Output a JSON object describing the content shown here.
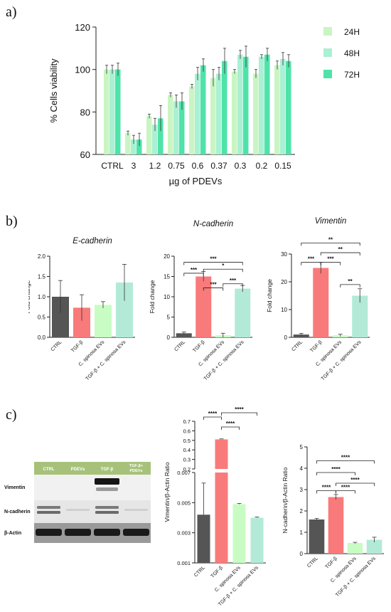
{
  "panels": {
    "a": "a)",
    "b": "b)",
    "c": "c)"
  },
  "colors": {
    "h24": "#c9f5c2",
    "h48": "#aaf0d4",
    "h72": "#4fe3a9",
    "ctrl": "#555555",
    "tgf": "#f97a7a",
    "cs": "#c8fcc4",
    "tgfcs": "#b2ead7",
    "axis": "#222222",
    "err": "#333333",
    "blot_header": "#a7c17a"
  },
  "blot": {
    "columns": [
      "CTRL",
      "PDEVs",
      "TGF-β",
      "TGF-β+ PDEVs"
    ],
    "rows": [
      "Vimentin",
      "N-cadherin",
      "β-Actin"
    ]
  },
  "chart_data": [
    {
      "id": "a",
      "type": "bar",
      "title": "",
      "xlabel": "µg of PDEVs",
      "ylabel": "% Cells viability",
      "categories": [
        "CTRL",
        "3",
        "1.2",
        "0.75",
        "0.6",
        "0.37",
        "0.3",
        "0.2",
        "0.15"
      ],
      "ylim": [
        60,
        120
      ],
      "yticks": [
        "60",
        "80",
        "100",
        "120"
      ],
      "legend": "right",
      "series": [
        {
          "name": "24H",
          "values": [
            100,
            70,
            78,
            88,
            92,
            96,
            99,
            98,
            102
          ],
          "errors": [
            2,
            1,
            1,
            1,
            1,
            4,
            1,
            2,
            2
          ]
        },
        {
          "name": "48H",
          "values": [
            100,
            67,
            74,
            85,
            98,
            98,
            107,
            106,
            105
          ],
          "errors": [
            2,
            2,
            3,
            3,
            3,
            3,
            2,
            1,
            3
          ]
        },
        {
          "name": "72H",
          "values": [
            100,
            67,
            77,
            85,
            102,
            104,
            106,
            107,
            104
          ],
          "errors": [
            3,
            3,
            6,
            4,
            3,
            6,
            5,
            3,
            3
          ]
        }
      ]
    },
    {
      "id": "b1",
      "type": "bar",
      "title": "E-cadherin",
      "ylabel": "Fold change",
      "categories": [
        "CTRL",
        "TGF-β",
        "C. spinosa EVs",
        "TGF-β + C. spinosa EVs"
      ],
      "values": [
        1.0,
        0.73,
        0.8,
        1.35
      ],
      "errors": [
        0.4,
        0.32,
        0.08,
        0.45
      ],
      "ylim": [
        0,
        2.0
      ],
      "yticks": [
        "0.0",
        "0.5",
        "1.0",
        "1.5",
        "2.0"
      ],
      "significance": []
    },
    {
      "id": "b2",
      "type": "bar",
      "title": "N-cadherin",
      "ylabel": "Fold change",
      "categories": [
        "CTRL",
        "TGF-β",
        "C. spinosa EVs",
        "TGF-β + C. spinosa EVs"
      ],
      "values": [
        1.0,
        15.0,
        0.5,
        12.0
      ],
      "errors": [
        0.3,
        1.2,
        0.5,
        0.8
      ],
      "ylim": [
        0,
        20
      ],
      "yticks": [
        "0",
        "5",
        "10",
        "15",
        "20"
      ],
      "significance": [
        {
          "from": 0,
          "to": 1,
          "level": 15.8,
          "label": "***"
        },
        {
          "from": 1,
          "to": 2,
          "level": 12.2,
          "label": "***"
        },
        {
          "from": 2,
          "to": 3,
          "level": 13.2,
          "label": "***"
        },
        {
          "from": 1,
          "to": 3,
          "level": 16.8,
          "label": "*"
        },
        {
          "from": 0,
          "to": 3,
          "level": 18.5,
          "label": "***"
        }
      ]
    },
    {
      "id": "b3",
      "type": "bar",
      "title": "Vimentin",
      "ylabel": "Fold change",
      "categories": [
        "CTRL",
        "TGF-β",
        "C. spinosa EVs",
        "TGF-β + C. spinosa EVs"
      ],
      "values": [
        1.0,
        25.0,
        0.7,
        15.0
      ],
      "errors": [
        0.4,
        2.0,
        0.4,
        2.5
      ],
      "ylim": [
        0,
        30
      ],
      "yticks": [
        "0",
        "10",
        "20",
        "30"
      ],
      "significance": [
        {
          "from": 0,
          "to": 1,
          "level": 27.0,
          "label": "***"
        },
        {
          "from": 1,
          "to": 2,
          "level": 27.0,
          "label": "***"
        },
        {
          "from": 2,
          "to": 3,
          "level": 19.0,
          "label": "**"
        },
        {
          "from": 1,
          "to": 3,
          "level": 30.5,
          "label": "**"
        },
        {
          "from": 0,
          "to": 3,
          "level": 34.0,
          "label": "**"
        }
      ]
    },
    {
      "id": "c1",
      "type": "bar",
      "title": "",
      "ylabel": "Vimentin/β-Actin Ratio",
      "categories": [
        "CTRL",
        "TGF-β",
        "C. spinosa EVs",
        "TGF-β + C. spinosa EVs"
      ],
      "values": [
        0.0042,
        0.51,
        0.0049,
        0.004
      ],
      "errors": [
        0.0021,
        0.005,
        3e-05,
        5e-05
      ],
      "yticks_upper": [
        "0.2",
        "0.3",
        "0.4",
        "0.5",
        "0.6",
        "0.7"
      ],
      "yticks_lower": [
        "0.001",
        "0.003",
        "0.005",
        "0.007"
      ],
      "axis_break": [
        0.007,
        0.2
      ],
      "significance": [
        {
          "from": 0,
          "to": 1,
          "label": "****"
        },
        {
          "from": 1,
          "to": 2,
          "label": "****"
        },
        {
          "from": 1,
          "to": 3,
          "label": "****"
        }
      ]
    },
    {
      "id": "c2",
      "type": "bar",
      "title": "",
      "ylabel": "N-cadherin/β-Actin Ratio",
      "categories": [
        "CTRL",
        "TGF-β",
        "C. spinosa EVs",
        "TGF-β + C. spinosa EVs"
      ],
      "values": [
        1.6,
        2.65,
        0.5,
        0.65
      ],
      "errors": [
        0.05,
        0.12,
        0.03,
        0.12
      ],
      "ylim": [
        0,
        5
      ],
      "yticks": [
        "0",
        "1",
        "2",
        "3",
        "4",
        "5"
      ],
      "significance": [
        {
          "from": 0,
          "to": 1,
          "level": 2.95,
          "label": "****"
        },
        {
          "from": 1,
          "to": 2,
          "level": 2.95,
          "label": "****"
        },
        {
          "from": 1,
          "to": 3,
          "level": 3.3,
          "label": "****"
        },
        {
          "from": 0,
          "to": 2,
          "level": 3.8,
          "label": "****"
        },
        {
          "from": 0,
          "to": 3,
          "level": 4.35,
          "label": "****"
        }
      ]
    }
  ]
}
